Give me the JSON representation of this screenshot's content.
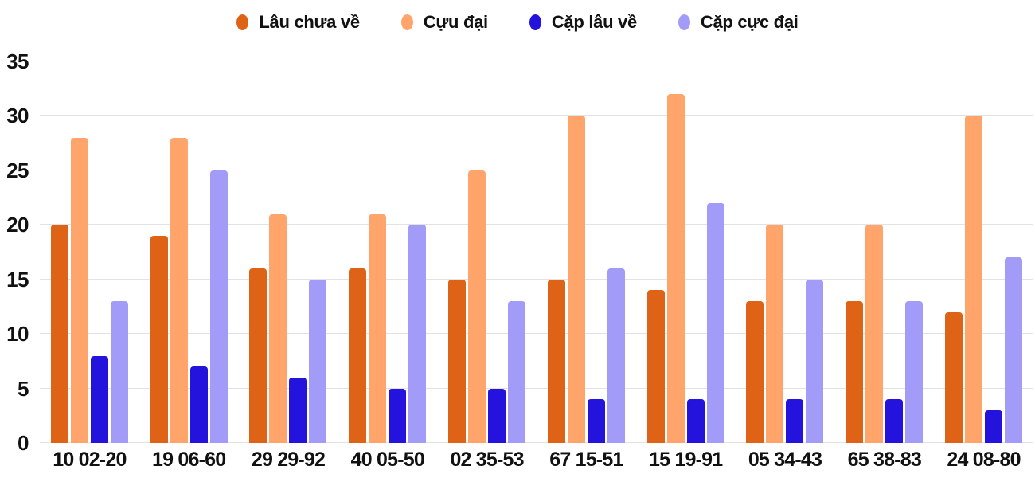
{
  "chart_data": {
    "type": "bar",
    "grouped": true,
    "title": "",
    "xlabel": "",
    "ylabel": "",
    "categories": [
      "10 02-20",
      "19 06-60",
      "29 29-92",
      "40 05-50",
      "02 35-53",
      "67 15-51",
      "15 19-91",
      "05 34-43",
      "65 38-83",
      "24 08-80"
    ],
    "series": [
      {
        "name": "Lâu chưa về",
        "color": "#df6316",
        "values": [
          20,
          19,
          16,
          16,
          15,
          15,
          14,
          13,
          13,
          12
        ]
      },
      {
        "name": "Cựu đại",
        "color": "#ffa46a",
        "values": [
          28,
          28,
          21,
          21,
          25,
          30,
          32,
          20,
          20,
          30
        ]
      },
      {
        "name": "Cặp lâu về",
        "color": "#2313dc",
        "values": [
          8,
          7,
          6,
          5,
          5,
          4,
          4,
          4,
          4,
          3
        ]
      },
      {
        "name": "Cặp cực đại",
        "color": "#a29bf8",
        "values": [
          13,
          25,
          15,
          20,
          13,
          16,
          22,
          15,
          13,
          17
        ]
      }
    ],
    "ylim": [
      0,
      35
    ],
    "yticks": [
      0,
      5,
      10,
      15,
      20,
      25,
      30,
      35
    ],
    "grid": true,
    "legend_position": "top",
    "colors": {
      "grid": "#e2e2e2",
      "text": "#111111",
      "background": "#ffffff"
    }
  }
}
